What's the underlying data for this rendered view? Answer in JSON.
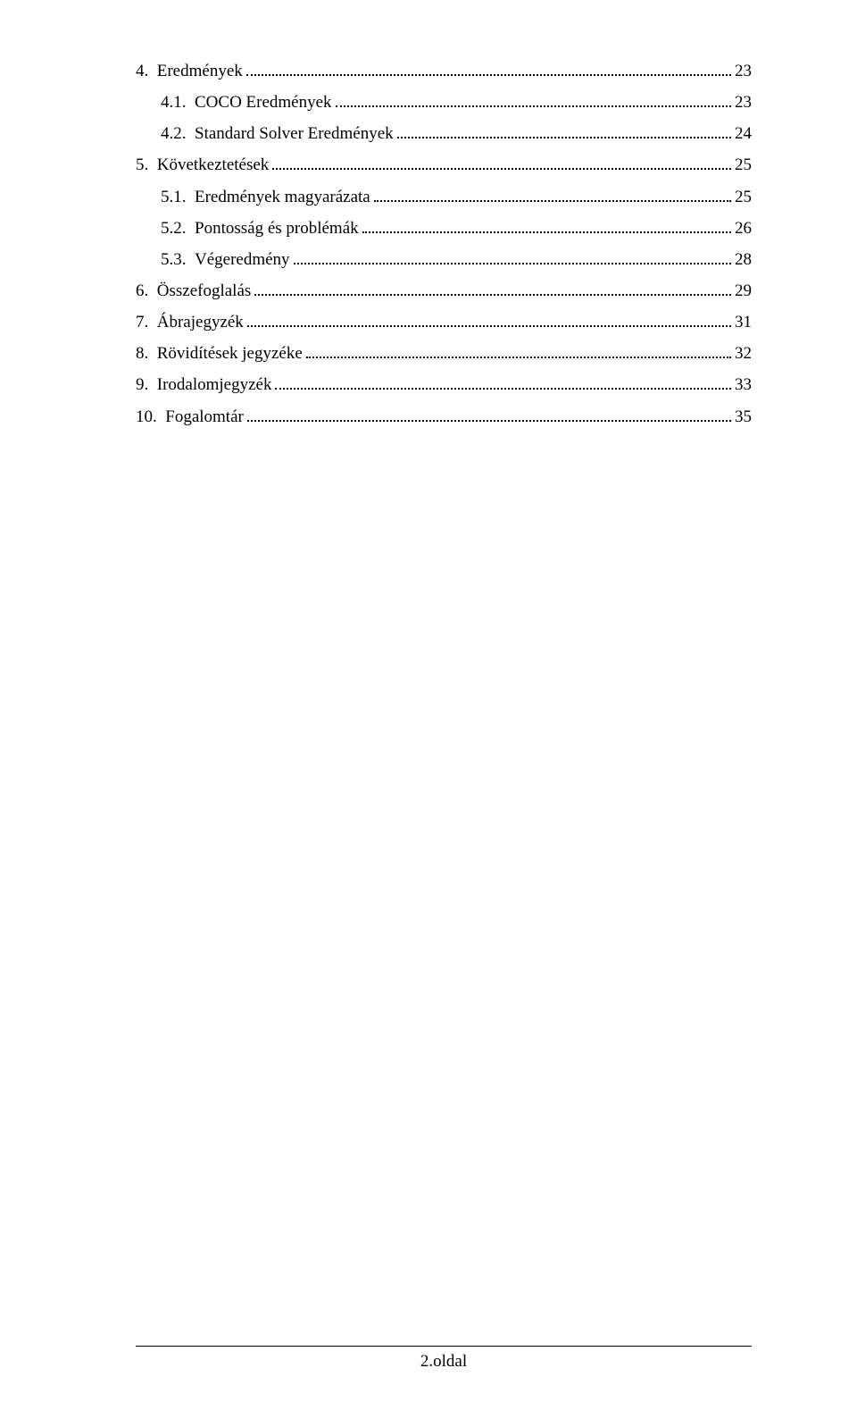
{
  "toc": [
    {
      "indent": 0,
      "num": "4.",
      "title": "Eredmények",
      "page": "23"
    },
    {
      "indent": 1,
      "num": "4.1.",
      "title": "COCO Eredmények",
      "page": "23"
    },
    {
      "indent": 1,
      "num": "4.2.",
      "title": "Standard Solver Eredmények",
      "page": "24"
    },
    {
      "indent": 0,
      "num": "5.",
      "title": "Következtetések",
      "page": "25"
    },
    {
      "indent": 1,
      "num": "5.1.",
      "title": "Eredmények magyarázata",
      "page": "25"
    },
    {
      "indent": 1,
      "num": "5.2.",
      "title": "Pontosság és problémák",
      "page": "26"
    },
    {
      "indent": 1,
      "num": "5.3.",
      "title": "Végeredmény",
      "page": "28"
    },
    {
      "indent": 0,
      "num": "6.",
      "title": "Összefoglalás",
      "page": "29"
    },
    {
      "indent": 0,
      "num": "7.",
      "title": "Ábrajegyzék",
      "page": "31"
    },
    {
      "indent": 0,
      "num": "8.",
      "title": "Rövidítések jegyzéke",
      "page": "32"
    },
    {
      "indent": 0,
      "num": "9.",
      "title": "Irodalomjegyzék",
      "page": "33"
    },
    {
      "indent": 0,
      "num": "10.",
      "title": "Fogalomtár",
      "page": "35"
    }
  ],
  "footer": {
    "label": "2.oldal"
  }
}
